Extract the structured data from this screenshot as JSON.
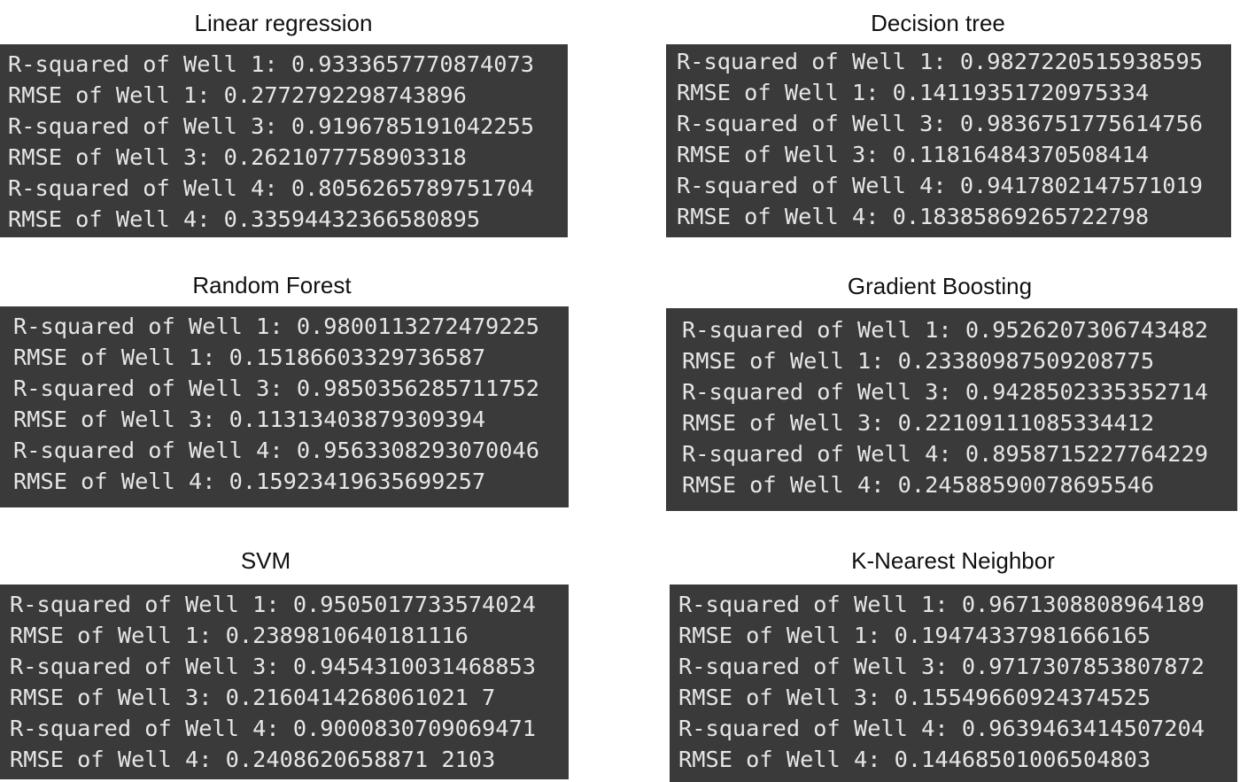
{
  "panels": [
    {
      "title": "Linear regression",
      "lines": [
        "R-squared of Well 1: 0.9333657770874073",
        "RMSE of Well 1: 0.2772792298743896",
        "R-squared of Well 3: 0.9196785191042255",
        "RMSE of Well 3: 0.2621077758903318",
        "R-squared of Well 4: 0.8056265789751704",
        "RMSE of Well 4: 0.33594432366580895"
      ]
    },
    {
      "title": "Decision tree",
      "lines": [
        "R-squared of Well 1: 0.9827220515938595",
        "RMSE of Well 1: 0.14119351720975334",
        "R-squared of Well 3: 0.9836751775614756",
        "RMSE of Well 3: 0.11816484370508414",
        "R-squared of Well 4: 0.9417802147571019",
        "RMSE of Well 4: 0.18385869265722798"
      ]
    },
    {
      "title": "Random Forest",
      "lines": [
        "R-squared of Well 1: 0.9800113272479225",
        "RMSE of Well 1: 0.15186603329736587",
        "R-squared of Well 3: 0.9850356285711752",
        "RMSE of Well 3: 0.11313403879309394",
        "R-squared of Well 4: 0.9563308293070046",
        "RMSE of Well 4: 0.15923419635699257"
      ]
    },
    {
      "title": "Gradient Boosting",
      "lines": [
        "R-squared of Well 1: 0.9526207306743482",
        "RMSE of Well 1: 0.23380987509208775",
        "R-squared of Well 3: 0.9428502335352714",
        "RMSE of Well 3: 0.22109111085334412",
        "R-squared of Well 4: 0.8958715227764229",
        "RMSE of Well 4: 0.24588590078695546"
      ]
    },
    {
      "title": "SVM",
      "lines": [
        "R-squared of Well 1: 0.9505017733574024",
        "RMSE of Well 1: 0.2389810640181116",
        "R-squared of Well 3: 0.9454310031468853",
        "RMSE of Well 3: 0.2160414268061021 7",
        "R-squared of Well 4: 0.9000830709069471",
        "RMSE of Well 4: 0.2408620658871 2103"
      ]
    },
    {
      "title": "K-Nearest Neighbor",
      "lines": [
        "R-squared of Well 1: 0.9671308808964189",
        "RMSE of Well 1: 0.19474337981666165",
        "R-squared of Well 3: 0.9717307853807872",
        "RMSE of Well 3: 0.15549660924374525",
        "R-squared of Well 4: 0.9639463414507204",
        "RMSE of Well 4: 0.14468501006504803"
      ]
    }
  ]
}
